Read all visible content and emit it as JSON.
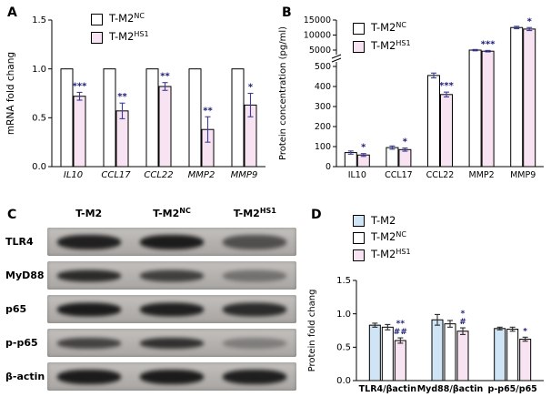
{
  "panels": {
    "A": {
      "label": "A"
    },
    "B": {
      "label": "B"
    },
    "C": {
      "label": "C"
    },
    "D": {
      "label": "D"
    }
  },
  "legends": {
    "A": [
      {
        "name": "T-M2",
        "sup": "NC",
        "color": "#ffffff"
      },
      {
        "name": "T-M2",
        "sup": "HS1",
        "color": "#f7e3f1"
      }
    ],
    "B": [
      {
        "name": "T-M2",
        "sup": "NC",
        "color": "#ffffff"
      },
      {
        "name": "T-M2",
        "sup": "HS1",
        "color": "#f7e3f1"
      }
    ],
    "D": [
      {
        "name": "T-M2",
        "sup": "",
        "color": "#cfe4f5"
      },
      {
        "name": "T-M2",
        "sup": "NC",
        "color": "#ffffff"
      },
      {
        "name": "T-M2",
        "sup": "HS1",
        "color": "#f7e3f1"
      }
    ]
  },
  "blots": {
    "columns": [
      {
        "name": "T-M2",
        "sup": ""
      },
      {
        "name": "T-M2",
        "sup": "NC"
      },
      {
        "name": "T-M2",
        "sup": "HS1"
      }
    ],
    "rows": [
      {
        "label": "TLR4",
        "bands": [
          0.92,
          0.95,
          0.62
        ]
      },
      {
        "label": "MyD88",
        "bands": [
          0.85,
          0.72,
          0.4
        ]
      },
      {
        "label": "p65",
        "bands": [
          0.95,
          0.92,
          0.85
        ]
      },
      {
        "label": "p-p65",
        "bands": [
          0.7,
          0.82,
          0.32
        ]
      },
      {
        "label": "β-actin",
        "bands": [
          0.95,
          0.95,
          0.93
        ]
      }
    ]
  },
  "chart_data": [
    {
      "panel": "A",
      "type": "bar",
      "title": "",
      "ylabel": "mRNA fold chang",
      "ylim": [
        0,
        1.5
      ],
      "yticks": [
        {
          "v": 0,
          "label": "0.0"
        },
        {
          "v": 0.5,
          "label": "0.5"
        },
        {
          "v": 1.0,
          "label": "1.0"
        },
        {
          "v": 1.5,
          "label": "1.5"
        }
      ],
      "categories": [
        "IL10",
        "CCL17",
        "CCL22",
        "MMP2",
        "MMP9"
      ],
      "series": [
        {
          "name": "T-M2NC",
          "color": "#ffffff",
          "values": [
            1.0,
            1.0,
            1.0,
            1.0,
            1.0
          ],
          "errors": [
            0,
            0,
            0,
            0,
            0
          ]
        },
        {
          "name": "T-M2HS1",
          "color": "#f7e3f1",
          "values": [
            0.72,
            0.57,
            0.82,
            0.38,
            0.63
          ],
          "errors": [
            0.04,
            0.08,
            0.04,
            0.13,
            0.12
          ]
        }
      ],
      "significance": [
        [
          "***"
        ],
        [
          "**"
        ],
        [
          "**"
        ],
        [
          "**"
        ],
        [
          "*"
        ]
      ],
      "legend_position": "top-left-inside",
      "grid": false
    },
    {
      "panel": "B",
      "type": "bar",
      "title": "",
      "ylabel": "Protein concentration (pg/ml)",
      "axis_break": {
        "lower": [
          0,
          500
        ],
        "upper": [
          5000,
          15000
        ]
      },
      "yticks_lower": [
        {
          "v": 0,
          "label": "0"
        },
        {
          "v": 100,
          "label": "100"
        },
        {
          "v": 200,
          "label": "200"
        },
        {
          "v": 300,
          "label": "300"
        },
        {
          "v": 400,
          "label": "400"
        },
        {
          "v": 500,
          "label": "500"
        }
      ],
      "yticks_upper": [
        {
          "v": 5000,
          "label": "5000"
        },
        {
          "v": 10000,
          "label": "10000"
        },
        {
          "v": 15000,
          "label": "15000"
        }
      ],
      "categories": [
        "IL10",
        "CCL17",
        "CCL22",
        "MMP2",
        "MMP9"
      ],
      "series": [
        {
          "name": "T-M2NC",
          "color": "#ffffff",
          "values": [
            70,
            95,
            455,
            5000,
            12500
          ],
          "errors": [
            8,
            8,
            12,
            200,
            400
          ]
        },
        {
          "name": "T-M2HS1",
          "color": "#f7e3f1",
          "values": [
            58,
            85,
            360,
            4700,
            12000
          ],
          "errors": [
            7,
            8,
            12,
            200,
            500
          ]
        }
      ],
      "significance": [
        [
          "*"
        ],
        [
          "*"
        ],
        [
          "***"
        ],
        [
          "***"
        ],
        [
          "*"
        ]
      ],
      "legend_position": "top-left-inside",
      "grid": false
    },
    {
      "panel": "D",
      "type": "bar",
      "title": "",
      "ylabel": "Protein fold chang",
      "ylim": [
        0,
        1.5
      ],
      "yticks": [
        {
          "v": 0,
          "label": "0.0"
        },
        {
          "v": 0.5,
          "label": "0.5"
        },
        {
          "v": 1.0,
          "label": "1.0"
        },
        {
          "v": 1.5,
          "label": "1.5"
        }
      ],
      "categories": [
        "TLR4/βactin",
        "Myd88/βactin",
        "p-p65/p65"
      ],
      "series": [
        {
          "name": "T-M2",
          "color": "#cfe4f5",
          "values": [
            0.83,
            0.91,
            0.78
          ],
          "errors": [
            0.03,
            0.08,
            0.02
          ]
        },
        {
          "name": "T-M2NC",
          "color": "#ffffff",
          "values": [
            0.8,
            0.85,
            0.77
          ],
          "errors": [
            0.04,
            0.05,
            0.03
          ]
        },
        {
          "name": "T-M2HS1",
          "color": "#f7e3f1",
          "values": [
            0.6,
            0.74,
            0.62
          ],
          "errors": [
            0.04,
            0.05,
            0.03
          ]
        }
      ],
      "significance": [
        [
          "**",
          "##"
        ],
        [
          "*",
          "#"
        ],
        [
          "*"
        ]
      ],
      "legend_position": "top-left-above",
      "grid": false
    }
  ]
}
